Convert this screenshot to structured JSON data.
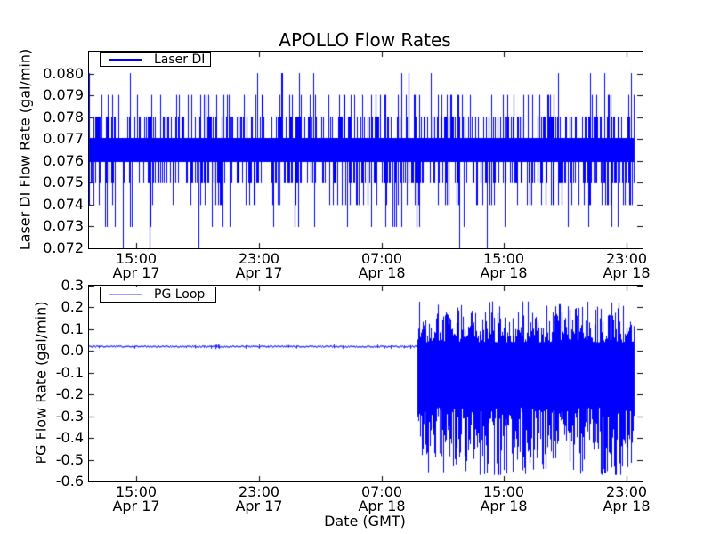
{
  "figure": {
    "title": "APOLLO Flow Rates",
    "xlabel": "Date (GMT)",
    "background_color": "#ffffff",
    "axes_color": "#000000",
    "line_color": "#0000ff",
    "random_seed": 7
  },
  "chart_data": [
    {
      "type": "line",
      "subplot": "top",
      "ylabel": "Laser DI Flow Rate (gal/min)",
      "ylim": [
        0.072,
        0.081
      ],
      "yticks": [
        0.08,
        0.079,
        0.078,
        0.077,
        0.076,
        0.075,
        0.074,
        0.073,
        0.072
      ],
      "yticklabels": [
        "0.080",
        "0.079",
        "0.078",
        "0.077",
        "0.076",
        "0.075",
        "0.074",
        "0.073",
        "0.072"
      ],
      "x_axis": {
        "range_hours": [
          0,
          36.16
        ],
        "tick_hours": [
          3.11,
          11.11,
          19.11,
          27.11,
          35.11
        ],
        "ticklabels": [
          "15:00\nApr 17",
          "23:00\nApr 17",
          "07:00\nApr 18",
          "15:00\nApr 18",
          "23:00\nApr 18"
        ]
      },
      "legend": {
        "label": "Laser DI",
        "sample_color": "#0000ff",
        "location": "upper left"
      },
      "grid": false,
      "series": [
        {
          "name": "Laser DI",
          "color": "#0000ff",
          "x_start_hour": 0,
          "x_end_hour": 35.6,
          "baseline_band": [
            0.076,
            0.077
          ],
          "quantization_step": 0.001,
          "spikes_up": [
            {
              "level": 0.08,
              "prob": 0.02
            },
            {
              "level": 0.079,
              "prob": 0.13
            },
            {
              "level": 0.078,
              "prob": 0.31
            }
          ],
          "spikes_down": [
            {
              "level": 0.072,
              "prob": 0.008
            },
            {
              "level": 0.073,
              "prob": 0.05
            },
            {
              "level": 0.074,
              "prob": 0.15
            },
            {
              "level": 0.075,
              "prob": 0.3
            }
          ]
        }
      ]
    },
    {
      "type": "line",
      "subplot": "bottom",
      "ylabel": "PG Flow Rate (gal/min)",
      "xlabel": "Date (GMT)",
      "ylim": [
        -0.6,
        0.3
      ],
      "yticks": [
        0.3,
        0.2,
        0.1,
        0.0,
        -0.1,
        -0.2,
        -0.3,
        -0.4,
        -0.5,
        -0.6
      ],
      "yticklabels": [
        "0.3",
        "0.2",
        "0.1",
        "0.0",
        "-0.1",
        "-0.2",
        "-0.3",
        "-0.4",
        "-0.5",
        "-0.6"
      ],
      "x_axis": {
        "range_hours": [
          0,
          36.16
        ],
        "tick_hours": [
          3.11,
          11.11,
          19.11,
          27.11,
          35.11
        ],
        "ticklabels": [
          "15:00\nApr 17",
          "23:00\nApr 17",
          "07:00\nApr 18",
          "15:00\nApr 18",
          "23:00\nApr 18"
        ]
      },
      "legend": {
        "label": "PG Loop",
        "sample_color": "#9f9fff",
        "location": "upper left"
      },
      "grid": false,
      "series": [
        {
          "name": "PG Loop",
          "color": "#0000ff",
          "x_start_hour": 0,
          "x_end_hour": 35.6,
          "phases": [
            {
              "type": "flat",
              "from_hour": 0,
              "to_hour": 21.5,
              "value": 0.02,
              "noise_amplitude": 0.005
            },
            {
              "type": "oscillation",
              "from_hour": 21.5,
              "to_hour": 35.6,
              "upper_envelope_range": [
                0.04,
                0.23
              ],
              "lower_envelope_range": [
                -0.26,
                -0.57
              ],
              "solid_band": [
                -0.26,
                0.03
              ]
            }
          ]
        }
      ]
    }
  ]
}
